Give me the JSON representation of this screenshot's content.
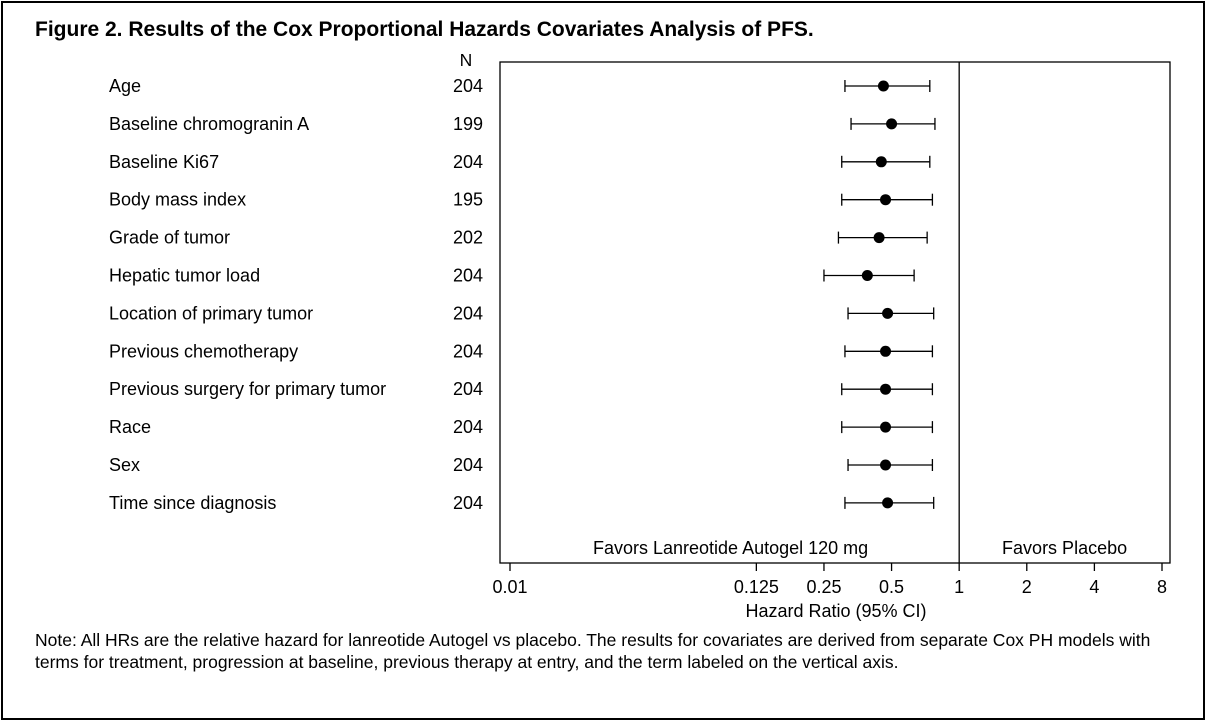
{
  "title": "Figure 2. Results of the Cox Proportional Hazards Covariates Analysis of PFS.",
  "note": "Note: All HRs are the relative hazard for lanreotide Autogel vs placebo. The results for covariates are derived from separate Cox PH models with terms for treatment, progression at baseline, previous therapy at entry, and the term labeled on the vertical axis.",
  "chart_data": {
    "type": "forest",
    "n_header": "N",
    "xlabel": "Hazard Ratio (95% CI)",
    "x_scale": "log",
    "xlim": [
      0.01,
      8
    ],
    "x_ticks": [
      0.01,
      0.125,
      0.25,
      0.5,
      1,
      2,
      4,
      8
    ],
    "x_tick_labels": [
      "0.01",
      "0.125",
      "0.25",
      "0.5",
      "1",
      "2",
      "4",
      "8"
    ],
    "reference_line": 1,
    "favors_left": "Favors Lanreotide Autogel 120 mg",
    "favors_right": "Favors Placebo",
    "rows": [
      {
        "label": "Age",
        "n": "204",
        "hr": 0.46,
        "lower": 0.31,
        "upper": 0.74
      },
      {
        "label": "Baseline chromogranin A",
        "n": "199",
        "hr": 0.5,
        "lower": 0.33,
        "upper": 0.78
      },
      {
        "label": "Baseline Ki67",
        "n": "204",
        "hr": 0.45,
        "lower": 0.3,
        "upper": 0.74
      },
      {
        "label": "Body mass index",
        "n": "195",
        "hr": 0.47,
        "lower": 0.3,
        "upper": 0.76
      },
      {
        "label": "Grade of tumor",
        "n": "202",
        "hr": 0.44,
        "lower": 0.29,
        "upper": 0.72
      },
      {
        "label": "Hepatic tumor load",
        "n": "204",
        "hr": 0.39,
        "lower": 0.25,
        "upper": 0.63
      },
      {
        "label": "Location of primary tumor",
        "n": "204",
        "hr": 0.48,
        "lower": 0.32,
        "upper": 0.77
      },
      {
        "label": "Previous chemotherapy",
        "n": "204",
        "hr": 0.47,
        "lower": 0.31,
        "upper": 0.76
      },
      {
        "label": "Previous surgery for primary tumor",
        "n": "204",
        "hr": 0.47,
        "lower": 0.3,
        "upper": 0.76
      },
      {
        "label": "Race",
        "n": "204",
        "hr": 0.47,
        "lower": 0.3,
        "upper": 0.76
      },
      {
        "label": "Sex",
        "n": "204",
        "hr": 0.47,
        "lower": 0.32,
        "upper": 0.76
      },
      {
        "label": "Time since diagnosis",
        "n": "204",
        "hr": 0.48,
        "lower": 0.31,
        "upper": 0.77
      }
    ]
  }
}
